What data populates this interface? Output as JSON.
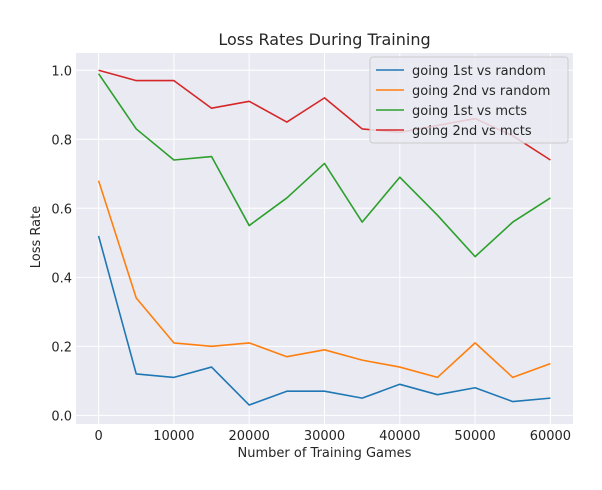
{
  "chart_data": {
    "type": "line",
    "title": "Loss Rates During Training",
    "xlabel": "Number of Training Games",
    "ylabel": "Loss Rate",
    "xlim": [
      -3000,
      63000
    ],
    "ylim": [
      -0.025,
      1.05
    ],
    "xticks": [
      0,
      10000,
      20000,
      30000,
      40000,
      50000,
      60000
    ],
    "yticks": [
      0.0,
      0.2,
      0.4,
      0.6,
      0.8,
      1.0
    ],
    "xtick_labels": [
      "0",
      "10000",
      "20000",
      "30000",
      "40000",
      "50000",
      "60000"
    ],
    "ytick_labels": [
      "0.0",
      "0.2",
      "0.4",
      "0.6",
      "0.8",
      "1.0"
    ],
    "grid": true,
    "legend_position": "top-right",
    "x": [
      0,
      5000,
      10000,
      15000,
      20000,
      25000,
      30000,
      35000,
      40000,
      45000,
      50000,
      55000,
      60000
    ],
    "series": [
      {
        "name": "going 1st vs random",
        "color": "#1f77b4",
        "values": [
          0.52,
          0.12,
          0.11,
          0.14,
          0.03,
          0.07,
          0.07,
          0.05,
          0.09,
          0.06,
          0.08,
          0.04,
          0.05
        ]
      },
      {
        "name": "going 2nd vs random",
        "color": "#ff7f0e",
        "values": [
          0.68,
          0.34,
          0.21,
          0.2,
          0.21,
          0.17,
          0.19,
          0.16,
          0.14,
          0.11,
          0.21,
          0.11,
          0.15
        ]
      },
      {
        "name": "going 1st vs mcts",
        "color": "#2ca02c",
        "values": [
          0.99,
          0.83,
          0.74,
          0.75,
          0.55,
          0.63,
          0.73,
          0.56,
          0.69,
          0.58,
          0.46,
          0.56,
          0.63
        ]
      },
      {
        "name": "going 2nd vs mcts",
        "color": "#d62728",
        "values": [
          1.0,
          0.97,
          0.97,
          0.89,
          0.91,
          0.85,
          0.92,
          0.83,
          0.82,
          0.84,
          0.86,
          0.81,
          0.74
        ]
      }
    ]
  }
}
